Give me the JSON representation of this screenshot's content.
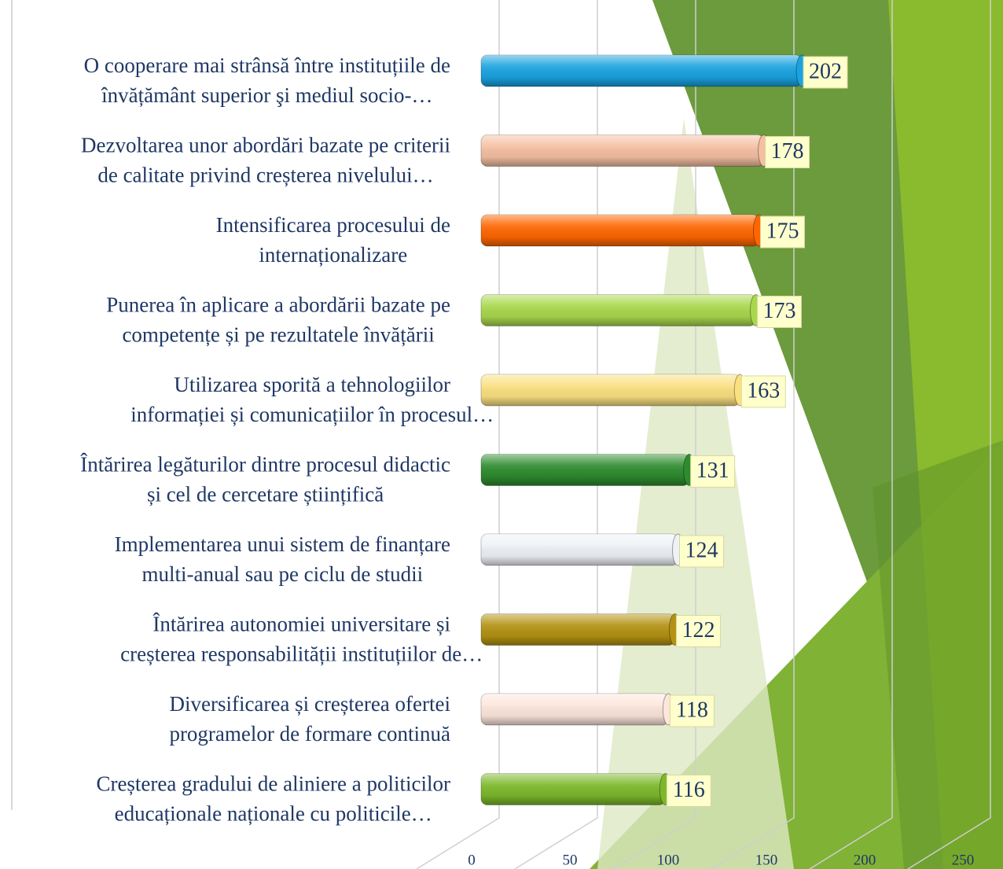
{
  "chart_data": {
    "type": "bar",
    "orientation": "horizontal",
    "categories": [
      [
        "O cooperare mai strânsă între instituțiile de",
        "învățământ superior şi mediul socio-…"
      ],
      [
        "Dezvoltarea unor abordări bazate pe criterii",
        "de calitate privind creșterea nivelului…"
      ],
      [
        "Intensificarea procesului de",
        "internaționalizare"
      ],
      [
        "Punerea în aplicare a abordării bazate pe",
        "competențe și pe rezultatele învățării"
      ],
      [
        "Utilizarea sporită a tehnologiilor",
        "informației și comunicațiilor în procesul…"
      ],
      [
        "Întărirea legăturilor dintre procesul didactic",
        "și cel de cercetare științifică"
      ],
      [
        "Implementarea unui sistem de finanțare",
        "multi-anual sau pe ciclu de studii"
      ],
      [
        "Întărirea autonomiei universitare și",
        "creșterea responsabilității instituțiilor de…"
      ],
      [
        "Diversificarea și creșterea ofertei",
        "programelor de formare continuă"
      ],
      [
        "Creșterea gradului de aliniere a politicilor",
        "educaționale naționale cu politicile…"
      ]
    ],
    "values": [
      202,
      178,
      175,
      173,
      163,
      131,
      124,
      122,
      118,
      116
    ],
    "colors": [
      "#1aa3e0",
      "#f5bfa2",
      "#ff6600",
      "#a8d84c",
      "#fbe080",
      "#2e8c2e",
      "#eef2f6",
      "#b39212",
      "#fde6dc",
      "#7cb82a"
    ],
    "xlim": [
      0,
      250
    ],
    "xticks": [
      0,
      50,
      100,
      150,
      200,
      250
    ],
    "grid": true
  }
}
